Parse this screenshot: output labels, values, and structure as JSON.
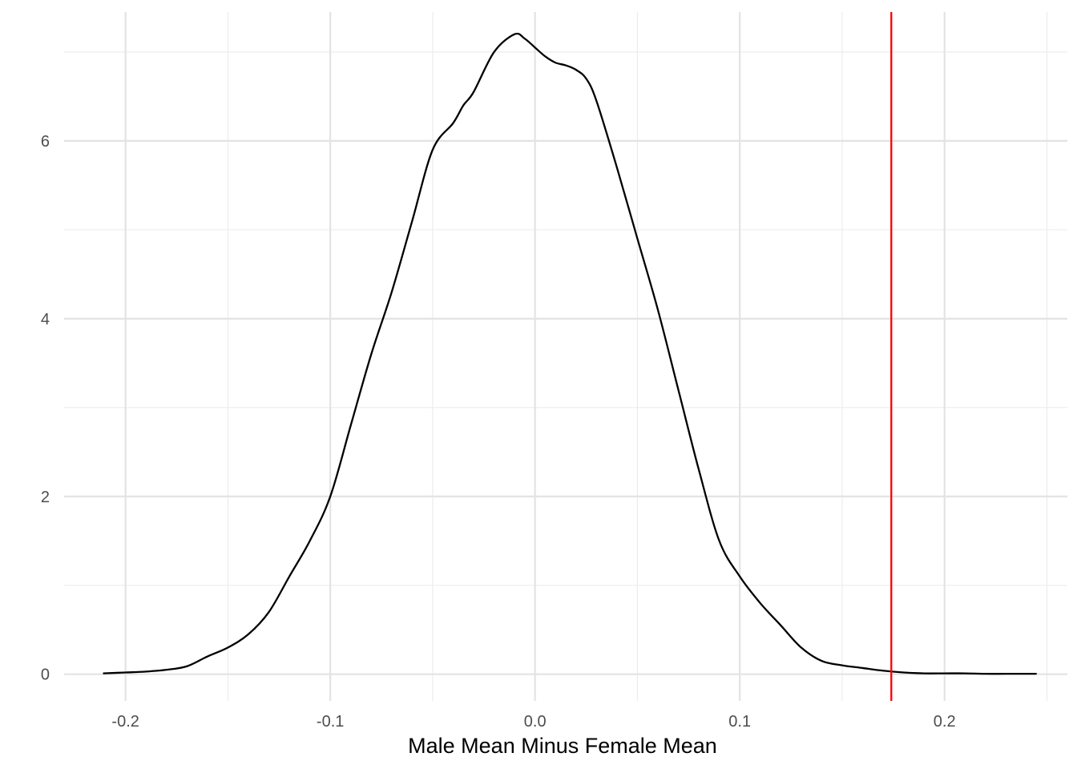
{
  "chart_data": {
    "type": "area",
    "title": "",
    "xlabel": "Male Mean Minus Female Mean",
    "ylabel": "",
    "xlim": [
      -0.23,
      0.26
    ],
    "ylim": [
      -0.3,
      7.45
    ],
    "x_ticks": [
      -0.2,
      -0.1,
      0.0,
      0.1,
      0.2
    ],
    "x_tick_labels": [
      "-0.2",
      "-0.1",
      "0.0",
      "0.1",
      "0.2"
    ],
    "y_ticks": [
      0,
      2,
      4,
      6
    ],
    "y_tick_labels": [
      "0",
      "2",
      "4",
      "6"
    ],
    "grid": true,
    "legend": "none",
    "series": [
      {
        "color": "#000000",
        "x": [
          -0.211,
          -0.2,
          -0.19,
          -0.18,
          -0.17,
          -0.16,
          -0.15,
          -0.14,
          -0.13,
          -0.12,
          -0.11,
          -0.1,
          -0.09,
          -0.08,
          -0.07,
          -0.06,
          -0.05,
          -0.04,
          -0.035,
          -0.03,
          -0.02,
          -0.01,
          -0.005,
          0.0,
          0.005,
          0.01,
          0.015,
          0.02,
          0.025,
          0.03,
          0.04,
          0.05,
          0.06,
          0.07,
          0.08,
          0.09,
          0.1,
          0.11,
          0.12,
          0.13,
          0.14,
          0.15,
          0.16,
          0.17,
          0.18,
          0.19,
          0.2,
          0.21,
          0.22,
          0.23,
          0.245
        ],
        "y": [
          0.01,
          0.02,
          0.03,
          0.05,
          0.09,
          0.2,
          0.3,
          0.45,
          0.7,
          1.1,
          1.5,
          2.0,
          2.8,
          3.6,
          4.3,
          5.1,
          5.9,
          6.2,
          6.4,
          6.55,
          7.0,
          7.2,
          7.15,
          7.05,
          6.95,
          6.88,
          6.85,
          6.8,
          6.7,
          6.45,
          5.7,
          4.9,
          4.1,
          3.2,
          2.3,
          1.5,
          1.1,
          0.8,
          0.55,
          0.3,
          0.15,
          0.1,
          0.07,
          0.04,
          0.02,
          0.01,
          0.01,
          0.01,
          0.005,
          0.005,
          0.005
        ]
      }
    ],
    "reference_lines": [
      {
        "axis": "x",
        "value": 0.174,
        "color": "#ff0000"
      }
    ]
  }
}
